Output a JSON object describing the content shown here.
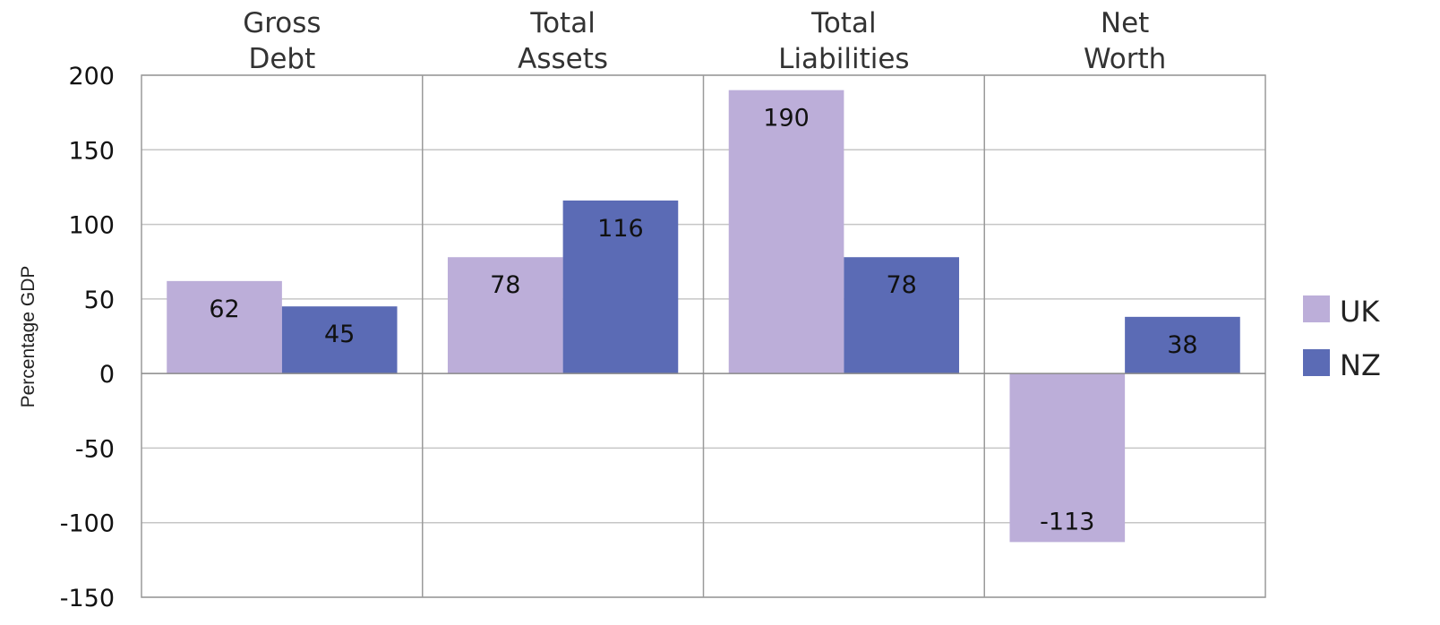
{
  "chart_data": {
    "type": "bar",
    "categories": [
      [
        "Gross",
        "Debt"
      ],
      [
        "Total",
        "Assets"
      ],
      [
        "Total",
        "Liabilities"
      ],
      [
        "Net",
        "Worth"
      ]
    ],
    "series": [
      {
        "name": "UK",
        "values": [
          62,
          78,
          190,
          -113
        ],
        "color": "#bcaed9"
      },
      {
        "name": "NZ",
        "values": [
          45,
          116,
          78,
          38
        ],
        "color": "#5b6bb5"
      }
    ],
    "ylabel": "Percentage GDP",
    "ylim": [
      -150,
      200
    ],
    "yticks": [
      200,
      150,
      100,
      50,
      0,
      -50,
      -100,
      -150
    ],
    "grid": true,
    "legend": "right",
    "data_labels": true
  }
}
